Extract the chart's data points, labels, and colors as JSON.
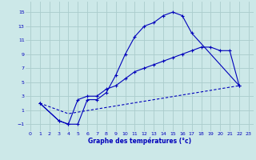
{
  "title": "Graphe des températures (°c)",
  "bg_color": "#cce8e8",
  "grid_color": "#aacccc",
  "line_color": "#0000bb",
  "xlim": [
    -0.5,
    23.5
  ],
  "ylim": [
    -2.0,
    16.5
  ],
  "xticks": [
    0,
    1,
    2,
    3,
    4,
    5,
    6,
    7,
    8,
    9,
    10,
    11,
    12,
    13,
    14,
    15,
    16,
    17,
    18,
    19,
    20,
    21,
    22,
    23
  ],
  "yticks": [
    -1,
    1,
    3,
    5,
    7,
    9,
    11,
    13,
    15
  ],
  "curve1_x": [
    1,
    3,
    4,
    5,
    6,
    7,
    8,
    9,
    10,
    11,
    12,
    13,
    14,
    15,
    16,
    17,
    22
  ],
  "curve1_y": [
    2,
    -0.5,
    -1,
    -1,
    2.5,
    2.5,
    3.5,
    6,
    9,
    11.5,
    13,
    13.5,
    14.5,
    15,
    14.5,
    12,
    4.5
  ],
  "curve2_x": [
    1,
    3,
    4,
    5,
    6,
    7,
    8,
    9,
    10,
    11,
    12,
    13,
    14,
    15,
    16,
    17,
    18,
    19,
    20,
    21,
    22
  ],
  "curve2_y": [
    2,
    -0.5,
    -1,
    2.5,
    3,
    3,
    4,
    4.5,
    5.5,
    6.5,
    7,
    7.5,
    8,
    8.5,
    9,
    9.5,
    10,
    10,
    9.5,
    9.5,
    4.5
  ],
  "curve3_x": [
    1,
    4,
    22
  ],
  "curve3_y": [
    2,
    0.5,
    4.5
  ]
}
